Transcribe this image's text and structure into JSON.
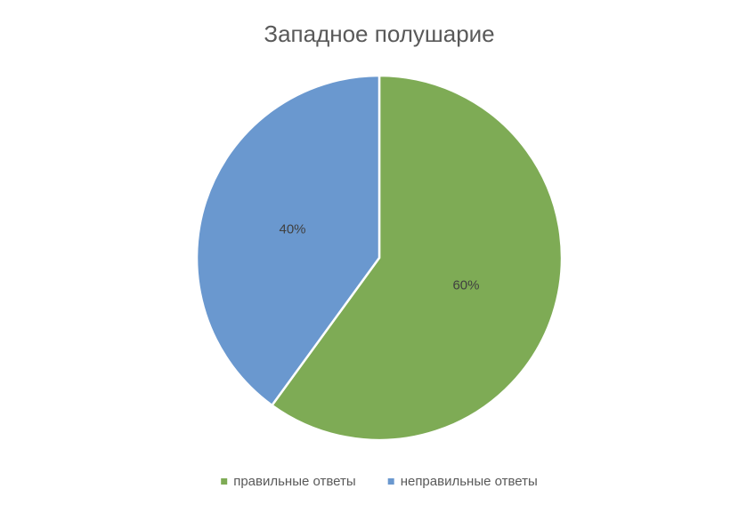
{
  "chart_data": {
    "type": "pie",
    "title": "Западное полушарие",
    "categories": [
      "правильные ответы",
      "неправильные ответы"
    ],
    "values": [
      60,
      40
    ],
    "value_labels": [
      "60%",
      "40%"
    ],
    "colors": [
      "#7eab55",
      "#6a98cf"
    ]
  }
}
